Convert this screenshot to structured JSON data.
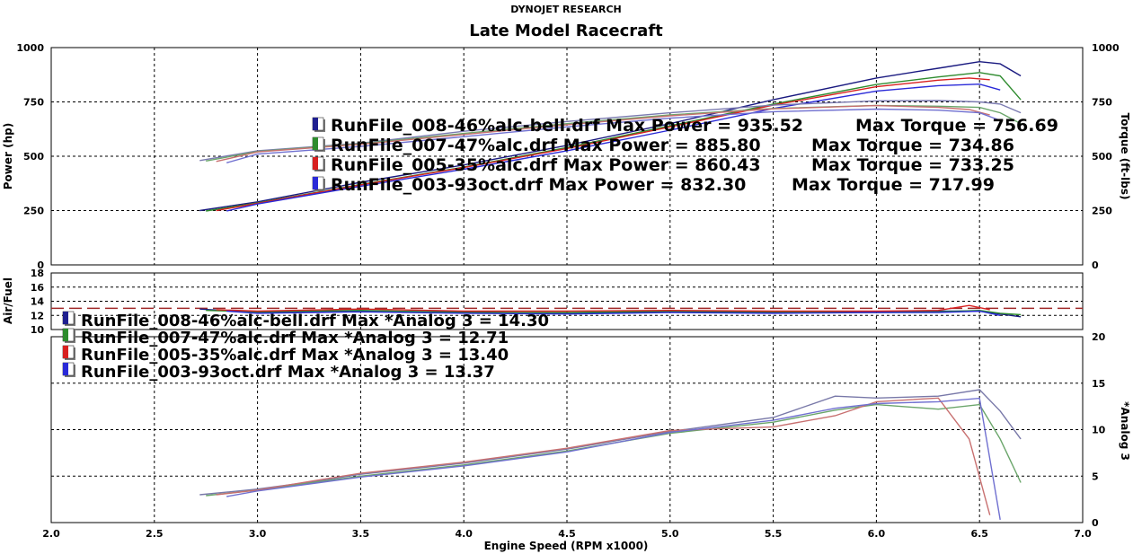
{
  "chart_data": [
    {
      "type": "line",
      "supertitle": "DYNOJET RESEARCH",
      "title": "Late Model Racecraft",
      "xlabel": "",
      "ylabel": "Power (hp)",
      "y2label": "Torque (ft-lbs)",
      "xlim": [
        2.0,
        7.0
      ],
      "ylim": [
        0,
        1000
      ],
      "y_ticks": [
        "0",
        "250",
        "500",
        "750",
        "1000"
      ],
      "grid": true,
      "legend_position": "center",
      "legend": [
        {
          "name": "RunFile_008-46%alc-bell.drf",
          "power_text": "Max Power = 935.52",
          "torque_text": "Max Torque = 756.69",
          "color": "#1f1f8f"
        },
        {
          "name": "RunFile_007-47%alc.drf",
          "power_text": "Max Power = 885.80",
          "torque_text": "Max Torque = 734.86",
          "color": "#2e8b2e"
        },
        {
          "name": "RunFile_005-35%alc.drf",
          "power_text": "Max Power = 860.43",
          "torque_text": "Max Torque = 733.25",
          "color": "#d82020"
        },
        {
          "name": "RunFile_003-93oct.drf",
          "power_text": "Max Power = 832.30",
          "torque_text": "Max Torque = 717.99",
          "color": "#2a2ad8"
        }
      ],
      "series": [
        {
          "name": "RunFile_008-46%alc-bell.drf Power",
          "color": "#1a1a80",
          "x": [
            2.72,
            3.0,
            3.5,
            4.0,
            4.5,
            5.0,
            5.5,
            6.0,
            6.3,
            6.5,
            6.6,
            6.7
          ],
          "values": [
            250,
            290,
            380,
            460,
            550,
            650,
            760,
            860,
            905,
            935,
            925,
            870
          ]
        },
        {
          "name": "RunFile_007-47%alc.drf Power",
          "color": "#2e8b2e",
          "x": [
            2.75,
            3.0,
            3.5,
            4.0,
            4.5,
            5.0,
            5.5,
            6.0,
            6.3,
            6.5,
            6.6,
            6.7
          ],
          "values": [
            248,
            285,
            370,
            450,
            540,
            640,
            740,
            830,
            865,
            885,
            870,
            760
          ]
        },
        {
          "name": "RunFile_005-35%alc.drf Power",
          "color": "#d82020",
          "x": [
            2.8,
            3.0,
            3.5,
            4.0,
            4.5,
            5.0,
            5.5,
            6.0,
            6.3,
            6.45,
            6.55
          ],
          "values": [
            250,
            283,
            368,
            448,
            535,
            635,
            735,
            820,
            850,
            860,
            852
          ]
        },
        {
          "name": "RunFile_003-93oct.drf Power",
          "color": "#2a2ad8",
          "x": [
            2.85,
            3.0,
            3.5,
            4.0,
            4.5,
            5.0,
            5.5,
            6.0,
            6.3,
            6.5,
            6.6
          ],
          "values": [
            248,
            280,
            362,
            440,
            525,
            620,
            720,
            800,
            825,
            832,
            805
          ]
        },
        {
          "name": "RunFile_008-46%alc-bell.drf Torque",
          "color": "#7a7ab0",
          "x": [
            2.72,
            3.0,
            3.5,
            4.0,
            4.5,
            5.0,
            5.5,
            6.0,
            6.3,
            6.5,
            6.6,
            6.7
          ],
          "values": [
            480,
            525,
            560,
            615,
            660,
            700,
            735,
            755,
            756,
            750,
            740,
            700
          ]
        },
        {
          "name": "RunFile_007-47%alc.drf Torque",
          "color": "#6aa56a",
          "x": [
            2.75,
            3.0,
            3.5,
            4.0,
            4.5,
            5.0,
            5.5,
            6.0,
            6.3,
            6.5,
            6.6,
            6.7
          ],
          "values": [
            478,
            522,
            558,
            605,
            650,
            690,
            720,
            734,
            730,
            725,
            700,
            650
          ]
        },
        {
          "name": "RunFile_005-35%alc.drf Torque",
          "color": "#c87070",
          "x": [
            2.8,
            3.0,
            3.5,
            4.0,
            4.5,
            5.0,
            5.5,
            6.0,
            6.3,
            6.45,
            6.55
          ],
          "values": [
            476,
            520,
            555,
            600,
            645,
            686,
            718,
            733,
            725,
            715,
            690
          ]
        },
        {
          "name": "RunFile_003-93oct.drf Torque",
          "color": "#7070d0",
          "x": [
            2.85,
            3.0,
            3.5,
            4.0,
            4.5,
            5.0,
            5.5,
            6.0,
            6.3,
            6.5,
            6.6
          ],
          "values": [
            470,
            510,
            545,
            590,
            635,
            675,
            705,
            717,
            712,
            700,
            665
          ]
        }
      ]
    },
    {
      "type": "line",
      "xlabel": "",
      "ylabel": "Air/Fuel",
      "xlim": [
        2.0,
        7.0
      ],
      "ylim": [
        10,
        18
      ],
      "y_ticks": [
        "10",
        "12",
        "14",
        "16",
        "18"
      ],
      "reference_line": 13,
      "grid": true,
      "series": [
        {
          "name": "RunFile_008-46%alc-bell.drf",
          "color": "#1a1a80",
          "x": [
            2.72,
            3.0,
            3.5,
            4.0,
            4.5,
            5.0,
            5.5,
            6.0,
            6.3,
            6.5,
            6.6,
            6.7
          ],
          "values": [
            12.9,
            12.4,
            12.6,
            12.5,
            12.3,
            12.5,
            12.4,
            12.5,
            12.6,
            12.6,
            12.2,
            11.8
          ]
        },
        {
          "name": "RunFile_007-47%alc.drf",
          "color": "#2e8b2e",
          "x": [
            2.75,
            3.0,
            3.5,
            4.0,
            4.5,
            5.0,
            5.5,
            6.0,
            6.3,
            6.5,
            6.6,
            6.7
          ],
          "values": [
            12.7,
            12.5,
            12.7,
            12.4,
            12.4,
            12.6,
            12.5,
            12.4,
            12.5,
            12.7,
            12.3,
            12.1
          ]
        },
        {
          "name": "RunFile_005-35%alc.drf",
          "color": "#d82020",
          "x": [
            2.8,
            3.0,
            3.5,
            4.0,
            4.5,
            5.0,
            5.5,
            6.0,
            6.3,
            6.45,
            6.55
          ],
          "values": [
            12.8,
            12.6,
            12.9,
            12.6,
            12.6,
            12.7,
            12.6,
            12.6,
            12.7,
            13.4,
            12.8
          ]
        },
        {
          "name": "RunFile_003-93oct.drf",
          "color": "#2a2ad8",
          "x": [
            2.85,
            3.0,
            3.5,
            4.0,
            4.5,
            5.0,
            5.5,
            6.0,
            6.3,
            6.5,
            6.6
          ],
          "values": [
            12.6,
            12.3,
            12.5,
            12.3,
            12.2,
            12.4,
            12.3,
            12.4,
            12.4,
            12.6,
            12.0
          ]
        }
      ]
    },
    {
      "type": "line",
      "xlabel": "Engine Speed (RPM x1000)",
      "ylabel": "*Analog 3",
      "xlim": [
        2.0,
        7.0
      ],
      "ylim": [
        0,
        20
      ],
      "x_ticks": [
        "2.0",
        "2.5",
        "3.0",
        "3.5",
        "4.0",
        "4.5",
        "5.0",
        "5.5",
        "6.0",
        "6.5",
        "7.0"
      ],
      "y_ticks": [
        "0",
        "5",
        "10",
        "15",
        "20"
      ],
      "grid": true,
      "legend_position": "top-left",
      "legend": [
        {
          "name": "RunFile_008-46%alc-bell.drf",
          "max_text": "Max *Analog 3 = 14.30",
          "color": "#1f1f8f"
        },
        {
          "name": "RunFile_007-47%alc.drf",
          "max_text": "Max *Analog 3 = 12.71",
          "color": "#2e8b2e"
        },
        {
          "name": "RunFile_005-35%alc.drf",
          "max_text": "Max *Analog 3 = 13.40",
          "color": "#d82020"
        },
        {
          "name": "RunFile_003-93oct.drf",
          "max_text": "Max *Analog 3 = 13.37",
          "color": "#2a2ad8"
        }
      ],
      "series": [
        {
          "name": "RunFile_008-46%alc-bell.drf",
          "color": "#7878a8",
          "x": [
            2.72,
            3.0,
            3.3,
            3.5,
            4.0,
            4.5,
            5.0,
            5.5,
            5.8,
            6.0,
            6.3,
            6.5,
            6.6,
            6.7
          ],
          "values": [
            3.0,
            3.6,
            4.5,
            5.2,
            6.4,
            7.9,
            9.8,
            11.3,
            13.6,
            13.4,
            13.6,
            14.3,
            12.0,
            9.0
          ]
        },
        {
          "name": "RunFile_007-47%alc.drf",
          "color": "#6aa56a",
          "x": [
            2.75,
            3.0,
            3.3,
            3.5,
            4.0,
            4.5,
            5.0,
            5.5,
            5.8,
            6.0,
            6.3,
            6.5,
            6.6,
            6.7
          ],
          "values": [
            2.9,
            3.5,
            4.4,
            5.0,
            6.2,
            7.7,
            9.6,
            10.8,
            12.1,
            12.7,
            12.2,
            12.7,
            9.0,
            4.3
          ]
        },
        {
          "name": "RunFile_005-35%alc.drf",
          "color": "#c87070",
          "x": [
            2.8,
            3.0,
            3.3,
            3.5,
            4.0,
            4.5,
            5.0,
            5.5,
            5.8,
            6.0,
            6.3,
            6.45,
            6.55
          ],
          "values": [
            3.0,
            3.5,
            4.6,
            5.3,
            6.5,
            8.0,
            9.9,
            10.3,
            11.5,
            13.0,
            13.4,
            9.0,
            0.8
          ]
        },
        {
          "name": "RunFile_003-93oct.drf",
          "color": "#7070d0",
          "x": [
            2.85,
            3.0,
            3.3,
            3.5,
            4.0,
            4.5,
            5.0,
            5.5,
            5.8,
            6.0,
            6.3,
            6.5,
            6.6
          ],
          "values": [
            2.8,
            3.4,
            4.3,
            4.9,
            6.1,
            7.6,
            9.7,
            11.0,
            12.3,
            12.8,
            13.0,
            13.37,
            0.3
          ]
        }
      ]
    }
  ]
}
